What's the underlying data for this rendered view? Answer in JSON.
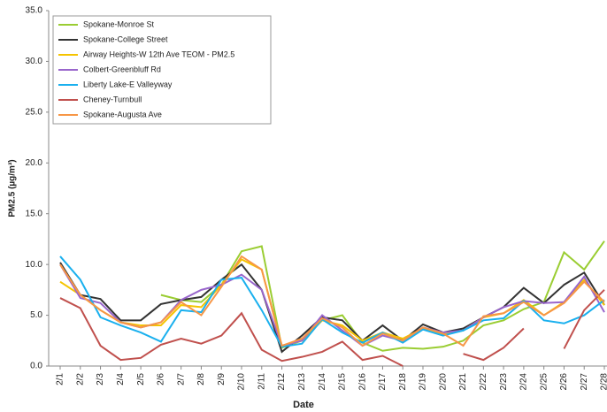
{
  "chart_data": {
    "type": "line",
    "x_label": "Date",
    "y_label": "PM2.5 (µg/m³)",
    "categories": [
      "2/1",
      "2/2",
      "2/3",
      "2/4",
      "2/5",
      "2/6",
      "2/7",
      "2/8",
      "2/9",
      "2/10",
      "2/11",
      "2/12",
      "2/13",
      "2/14",
      "2/15",
      "2/16",
      "2/17",
      "2/18",
      "2/19",
      "2/20",
      "2/21",
      "2/22",
      "2/23",
      "2/24",
      "2/25",
      "2/26",
      "2/27",
      "2/28"
    ],
    "ylim": [
      0,
      35
    ],
    "yticks": [
      {
        "value": 0,
        "label": "0.0"
      },
      {
        "value": 5,
        "label": "5.0"
      },
      {
        "value": 10,
        "label": "10.0"
      },
      {
        "value": 15,
        "label": "15.0"
      },
      {
        "value": 20,
        "label": "20.0"
      },
      {
        "value": 25,
        "label": "25.0"
      },
      {
        "value": 30,
        "label": "30.0"
      },
      {
        "value": 35,
        "label": "35.0"
      }
    ],
    "grid": false,
    "legend": "upper left",
    "series": [
      {
        "name": "Spokane-Monroe St",
        "color": "#9acd32",
        "values": [
          null,
          null,
          null,
          null,
          null,
          7.0,
          6.5,
          6.3,
          8.0,
          11.3,
          11.8,
          1.8,
          2.5,
          4.5,
          5.0,
          2.3,
          1.5,
          1.8,
          1.7,
          1.9,
          2.5,
          4.0,
          4.5,
          5.6,
          6.3,
          11.2,
          9.5,
          12.3
        ]
      },
      {
        "name": "Spokane-College Street",
        "color": "#333333",
        "values": [
          10.2,
          7.0,
          6.6,
          4.5,
          4.5,
          6.1,
          6.5,
          6.8,
          8.5,
          10.0,
          7.5,
          1.4,
          3.0,
          4.8,
          4.5,
          2.5,
          4.0,
          2.5,
          4.1,
          3.3,
          3.7,
          4.8,
          5.8,
          7.7,
          6.2,
          8.0,
          9.2,
          6.0
        ]
      },
      {
        "name": "Airway Heights-W 12th Ave TEOM - PM2.5",
        "color": "#f5c400",
        "values": [
          8.3,
          7.0,
          5.5,
          4.3,
          4.0,
          4.0,
          6.0,
          5.8,
          8.0,
          10.5,
          9.5,
          2.0,
          2.5,
          4.5,
          4.0,
          2.5,
          3.3,
          2.7,
          3.7,
          3.1,
          3.5,
          4.8,
          5.2,
          6.5,
          5.0,
          6.3,
          8.5,
          6.0
        ]
      },
      {
        "name": "Colbert-Greenbluff Rd",
        "color": "#9966cc",
        "values": [
          10.0,
          6.7,
          6.2,
          4.3,
          3.8,
          4.3,
          6.5,
          7.5,
          8.0,
          9.0,
          7.5,
          2.0,
          2.5,
          5.0,
          3.5,
          2.0,
          3.0,
          2.5,
          3.8,
          3.3,
          3.5,
          4.8,
          5.8,
          6.4,
          6.2,
          6.3,
          8.8,
          5.3
        ]
      },
      {
        "name": "Liberty Lake-E Valleyway",
        "color": "#1ab0ee",
        "values": [
          10.8,
          8.5,
          4.8,
          4.0,
          3.3,
          2.4,
          5.5,
          5.3,
          8.5,
          8.7,
          5.5,
          1.9,
          2.2,
          4.6,
          3.3,
          2.3,
          3.3,
          2.3,
          3.6,
          3.0,
          3.5,
          4.5,
          4.7,
          6.4,
          4.5,
          4.2,
          5.0,
          6.5
        ]
      },
      {
        "name": "Cheney-Turnbull",
        "color": "#c0504d",
        "values": [
          6.7,
          5.7,
          2.0,
          0.6,
          0.8,
          2.1,
          2.7,
          2.2,
          3.0,
          5.2,
          1.6,
          0.5,
          0.9,
          1.4,
          2.4,
          0.6,
          1.0,
          0.0,
          null,
          null,
          1.2,
          0.6,
          1.8,
          3.7,
          null,
          1.7,
          5.5,
          7.5
        ]
      },
      {
        "name": "Spokane-Augusta Ave",
        "color": "#f79646",
        "values": [
          10.0,
          7.0,
          5.5,
          4.3,
          3.8,
          4.3,
          6.3,
          5.0,
          7.8,
          10.8,
          9.5,
          2.0,
          2.7,
          4.7,
          3.8,
          2.0,
          3.2,
          2.5,
          3.8,
          3.2,
          2.0,
          4.9,
          5.2,
          6.3,
          5.0,
          6.2,
          8.3,
          6.3
        ]
      }
    ]
  }
}
